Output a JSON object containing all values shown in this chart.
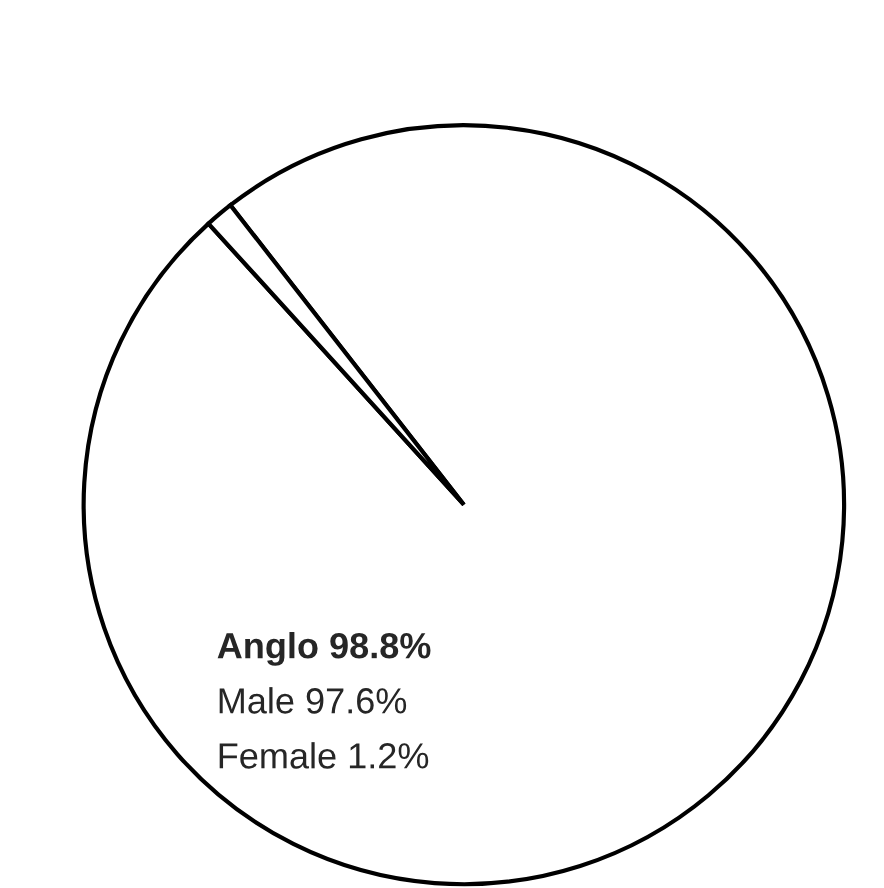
{
  "chart_data": {
    "type": "pie",
    "categories": [
      "Anglo",
      null
    ],
    "values": [
      98.8,
      1.2
    ],
    "value_labels": [
      "98.8%",
      null
    ],
    "colors": [
      "#ffffff",
      "#ffffff"
    ],
    "annotations": [
      "Male 97.6%",
      "Female 1.2%"
    ]
  }
}
